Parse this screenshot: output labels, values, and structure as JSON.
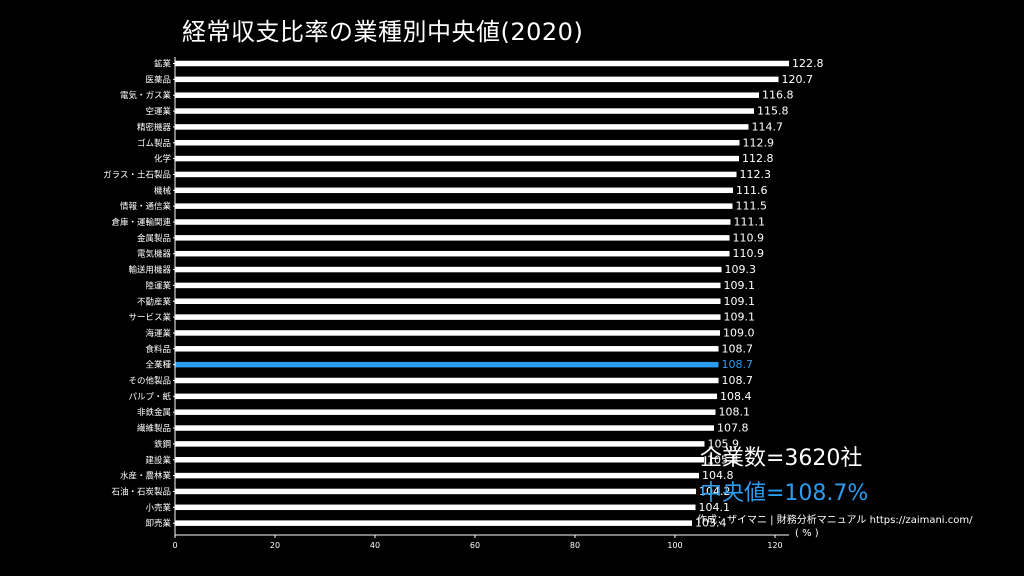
{
  "colors": {
    "background": "#000000",
    "bar": "#ffffff",
    "highlight": "#2b9cf0",
    "text": "#ffffff"
  },
  "chart_data": {
    "type": "bar",
    "orientation": "horizontal",
    "title": "経常収支比率の業種別中央値(2020)",
    "xlabel": "",
    "ylabel": "",
    "xlim": [
      0,
      122.8
    ],
    "x_ticks": [
      0,
      20,
      40,
      60,
      80,
      100,
      120
    ],
    "grid": false,
    "highlight_category": "全業種",
    "categories": [
      "鉱業",
      "医薬品",
      "電気・ガス業",
      "空運業",
      "精密機器",
      "ゴム製品",
      "化学",
      "ガラス・土石製品",
      "機械",
      "情報・通信業",
      "倉庫・運輸関連",
      "金属製品",
      "電気機器",
      "輸送用機器",
      "陸運業",
      "不動産業",
      "サービス業",
      "海運業",
      "食料品",
      "全業種",
      "その他製品",
      "パルプ・紙",
      "非鉄金属",
      "繊維製品",
      "鉄鋼",
      "建設業",
      "水産・農林業",
      "石油・石炭製品",
      "小売業",
      "卸売業"
    ],
    "values": [
      122.8,
      120.7,
      116.8,
      115.8,
      114.7,
      112.9,
      112.8,
      112.3,
      111.6,
      111.5,
      111.1,
      110.9,
      110.9,
      109.3,
      109.1,
      109.1,
      109.1,
      109.0,
      108.7,
      108.7,
      108.7,
      108.4,
      108.1,
      107.8,
      105.9,
      105.8,
      104.8,
      104.2,
      104.1,
      103.4
    ],
    "value_labels": [
      "122.8",
      "120.7",
      "116.8",
      "115.8",
      "114.7",
      "112.9",
      "112.8",
      "112.3",
      "111.6",
      "111.5",
      "111.1",
      "110.9",
      "110.9",
      "109.3",
      "109.1",
      "109.1",
      "109.1",
      "109.0",
      "108.7",
      "108.7",
      "108.7",
      "108.4",
      "108.1",
      "107.8",
      "105.9",
      "105.8",
      "104.8",
      "104.2",
      "104.1",
      "103.4"
    ]
  },
  "stats": {
    "company_count": "企業数=3620社",
    "median": "中央値=108.7%"
  },
  "credit": "作成：ザイマニ | 財務分析マニュアル https://zaimani.com/",
  "unit_label": "( % )"
}
